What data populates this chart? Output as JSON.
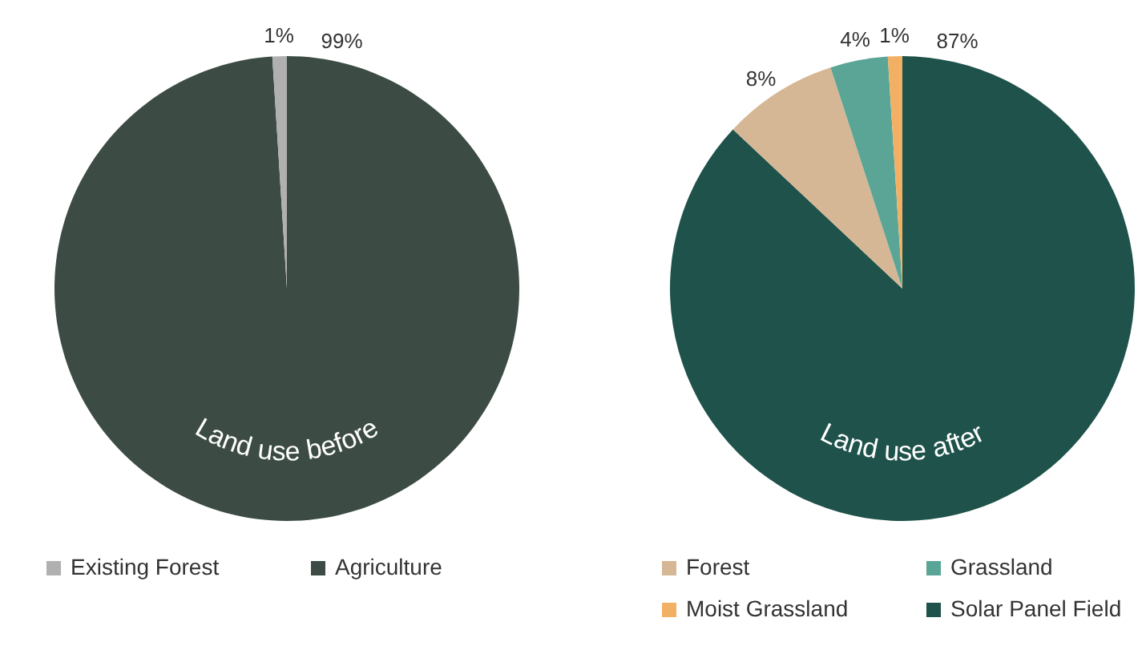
{
  "chart_data": [
    {
      "type": "pie",
      "title": "Land use before",
      "categories": [
        "Existing Forest",
        "Agriculture"
      ],
      "values": [
        1,
        99
      ],
      "value_labels": [
        "1%",
        "99%"
      ],
      "colors": [
        "#b0b0b0",
        "#3c4c44"
      ],
      "legend": "bottom"
    },
    {
      "type": "pie",
      "title": "Land use after",
      "categories": [
        "Forest",
        "Grassland",
        "Moist Grassland",
        "Solar Panel Field"
      ],
      "values": [
        8,
        4,
        1,
        87
      ],
      "value_labels": [
        "8%",
        "4%",
        "1%",
        "87%"
      ],
      "colors": [
        "#d5b795",
        "#5aa595",
        "#f2b064",
        "#1e524a"
      ],
      "legend": "bottom"
    }
  ]
}
